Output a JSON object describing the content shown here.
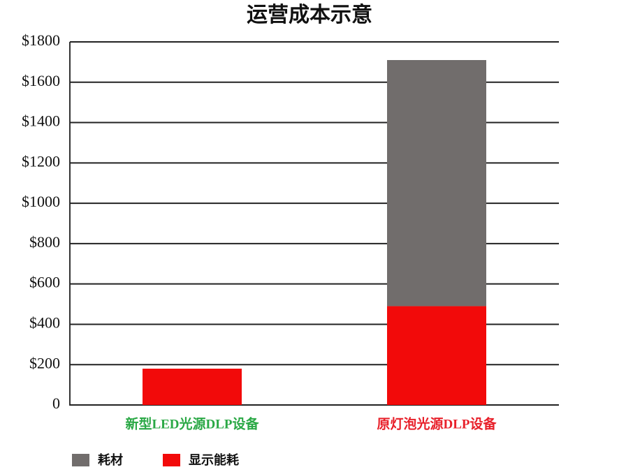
{
  "chart_data": {
    "type": "stacked_bar",
    "title": "运营成本示意",
    "categories": [
      "新型LED光源DLP设备",
      "原灯泡光源DLP设备"
    ],
    "category_label_colors": [
      "#2aa845",
      "#e8202a"
    ],
    "series": [
      {
        "name": "显示能耗",
        "color": "#f20a0a",
        "values": [
          180,
          490
        ]
      },
      {
        "name": "耗材",
        "color": "#716d6c",
        "values": [
          0,
          1220
        ]
      }
    ],
    "ylim": [
      0,
      1800
    ],
    "yticks": [
      0,
      {
        "value": 200,
        "label": "$200"
      },
      {
        "value": 400,
        "label": "$400"
      },
      {
        "value": 600,
        "label": "$600"
      },
      {
        "value": 800,
        "label": "$800"
      },
      {
        "value": 1000,
        "label": "$1000"
      },
      {
        "value": 1200,
        "label": "$1200"
      },
      {
        "value": 1400,
        "label": "$1400"
      },
      {
        "value": 1600,
        "label": "$1600"
      },
      {
        "value": 1800,
        "label": "$1800"
      }
    ],
    "grid": true,
    "legend": "bottom-left"
  }
}
